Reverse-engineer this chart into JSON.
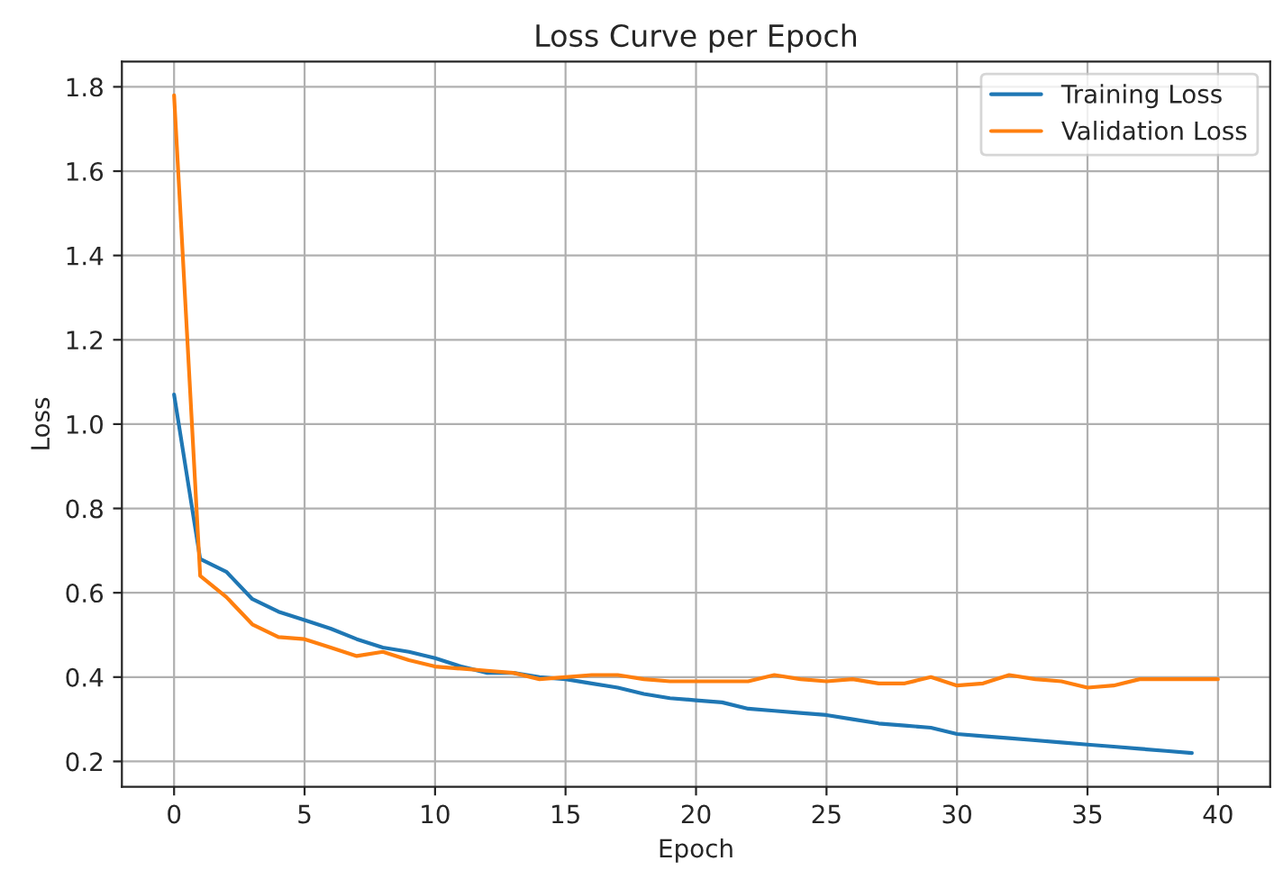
{
  "chart_data": {
    "type": "line",
    "title": "Loss Curve per Epoch",
    "xlabel": "Epoch",
    "ylabel": "Loss",
    "series": [
      {
        "name": "Training Loss",
        "color": "#1f77b4",
        "x": [
          0,
          1,
          2,
          3,
          4,
          5,
          6,
          7,
          8,
          9,
          10,
          11,
          12,
          13,
          14,
          15,
          16,
          17,
          18,
          19,
          20,
          21,
          22,
          23,
          24,
          25,
          26,
          27,
          28,
          29,
          30,
          31,
          32,
          33,
          34,
          35,
          36,
          37,
          38,
          39
        ],
        "values": [
          1.07,
          0.68,
          0.65,
          0.585,
          0.555,
          0.535,
          0.515,
          0.49,
          0.47,
          0.46,
          0.445,
          0.425,
          0.41,
          0.41,
          0.4,
          0.395,
          0.385,
          0.375,
          0.36,
          0.35,
          0.345,
          0.34,
          0.325,
          0.32,
          0.315,
          0.31,
          0.3,
          0.29,
          0.285,
          0.28,
          0.265,
          0.26,
          0.255,
          0.25,
          0.245,
          0.24,
          0.235,
          0.23,
          0.225,
          0.22
        ]
      },
      {
        "name": "Validation Loss",
        "color": "#ff7f0e",
        "x": [
          0,
          1,
          2,
          3,
          4,
          5,
          6,
          7,
          8,
          9,
          10,
          11,
          12,
          13,
          14,
          15,
          16,
          17,
          18,
          19,
          20,
          21,
          22,
          23,
          24,
          25,
          26,
          27,
          28,
          29,
          30,
          31,
          32,
          33,
          34,
          35,
          36,
          37,
          38,
          39,
          40
        ],
        "values": [
          1.78,
          0.64,
          0.59,
          0.525,
          0.495,
          0.49,
          0.47,
          0.45,
          0.46,
          0.44,
          0.425,
          0.42,
          0.415,
          0.41,
          0.395,
          0.4,
          0.405,
          0.405,
          0.395,
          0.39,
          0.39,
          0.39,
          0.39,
          0.405,
          0.395,
          0.39,
          0.395,
          0.385,
          0.385,
          0.4,
          0.38,
          0.385,
          0.405,
          0.395,
          0.39,
          0.375,
          0.38,
          0.395,
          0.395,
          0.395,
          0.395
        ]
      }
    ],
    "xlim": [
      -2,
      42
    ],
    "xticks": [
      0,
      5,
      10,
      15,
      20,
      25,
      30,
      35,
      40
    ],
    "ylim": [
      0.14,
      1.86
    ],
    "yticks": [
      0.2,
      0.4,
      0.6,
      0.8,
      {
        "value": 1.0,
        "label": "1.0"
      },
      1.2,
      1.4,
      1.6,
      1.8
    ],
    "grid": true,
    "legend": "top right",
    "marker": "none",
    "line_style": "solid"
  }
}
